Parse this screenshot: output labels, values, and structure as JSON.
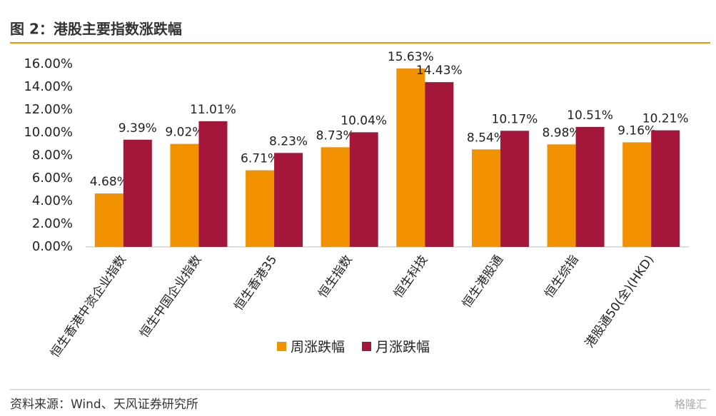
{
  "chart_data": {
    "type": "bar",
    "title": "图 2：港股主要指数涨跌幅",
    "source": "资料来源：Wind、天风证券研究所",
    "watermark": "格隆汇",
    "categories": [
      "恒生香港中资企业指数",
      "恒生中国企业指数",
      "恒生香港35",
      "恒生指数",
      "恒生科技",
      "恒生港股通",
      "恒生综指",
      "港股通50(全)(HKD)"
    ],
    "series": [
      {
        "name": "周涨跌幅",
        "color": "#f39200",
        "values": [
          4.68,
          9.02,
          6.71,
          8.73,
          15.63,
          8.54,
          8.98,
          9.16
        ],
        "value_labels": [
          "4.68%",
          "9.02%",
          "6.71%",
          "8.73%",
          "15.63%",
          "8.54%",
          "8.98%",
          "9.16%"
        ]
      },
      {
        "name": "月涨跌幅",
        "color": "#a5173a",
        "values": [
          9.39,
          11.01,
          8.23,
          10.04,
          14.43,
          10.17,
          10.51,
          10.21
        ],
        "value_labels": [
          "9.39%",
          "11.01%",
          "8.23%",
          "10.04%",
          "14.43%",
          "10.17%",
          "10.51%",
          "10.21%"
        ]
      }
    ],
    "ylim": [
      0,
      16
    ],
    "yticks": [
      {
        "value": 0,
        "label": "0.00%"
      },
      {
        "value": 2,
        "label": "2.00%"
      },
      {
        "value": 4,
        "label": "4.00%"
      },
      {
        "value": 6,
        "label": "6.00%"
      },
      {
        "value": 8,
        "label": "8.00%"
      },
      {
        "value": 10,
        "label": "10.00%"
      },
      {
        "value": 12,
        "label": "12.00%"
      },
      {
        "value": 14,
        "label": "14.00%"
      },
      {
        "value": 16,
        "label": "16.00%"
      }
    ],
    "grid": false,
    "legend": "bottom"
  }
}
